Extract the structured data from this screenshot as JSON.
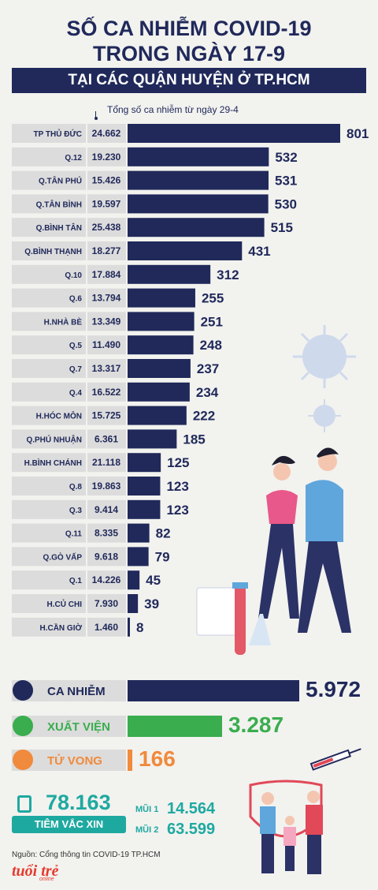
{
  "header": {
    "title_line1": "SỐ CA NHIỄM COVID-19",
    "title_line2": "TRONG NGÀY 17-9",
    "subtitle": "TẠI CÁC QUẬN HUYỆN Ở TP.HCM",
    "cumulative_note": "Tổng số ca nhiễm từ ngày 29-4"
  },
  "chart_data": {
    "type": "bar",
    "categories": [
      "TP THỦ ĐỨC",
      "Q.12",
      "Q.TÂN PHÚ",
      "Q.TÂN BÌNH",
      "Q.BÌNH TÂN",
      "Q.BÌNH THẠNH",
      "Q.10",
      "Q.6",
      "H.NHÀ BÈ",
      "Q.5",
      "Q.7",
      "Q.4",
      "H.HÓC MÔN",
      "Q.PHÚ NHUẬN",
      "H.BÌNH CHÁNH",
      "Q.8",
      "Q.3",
      "Q.11",
      "Q.GÒ VẤP",
      "Q.1",
      "H.CỦ CHI",
      "H.CẦN GIỜ"
    ],
    "cumulative_labels": [
      "24.662",
      "19.230",
      "15.426",
      "19.597",
      "25.438",
      "18.277",
      "17.884",
      "13.794",
      "13.349",
      "11.490",
      "13.317",
      "16.522",
      "15.725",
      "6.361",
      "21.118",
      "19.863",
      "9.414",
      "8.335",
      "9.618",
      "14.226",
      "7.930",
      "1.460"
    ],
    "values": [
      801,
      532,
      531,
      530,
      515,
      431,
      312,
      255,
      251,
      248,
      237,
      234,
      222,
      185,
      125,
      123,
      123,
      82,
      79,
      45,
      39,
      8
    ],
    "orientation": "horizontal",
    "bar_color": "#20295a",
    "xlim": [
      0,
      801
    ]
  },
  "stats": {
    "cases": {
      "label": "CA NHIỄM",
      "value": "5.972",
      "count": 5972,
      "color": "#20295a"
    },
    "recovered": {
      "label": "XUẤT VIỆN",
      "value": "3.287",
      "count": 3287,
      "color": "#3aad4e"
    },
    "deaths": {
      "label": "TỬ VONG",
      "value": "166",
      "count": 166,
      "color": "#f08a3c"
    }
  },
  "vaccine": {
    "total": "78.163",
    "label": "TIÊM VẮC XIN",
    "dose1_label": "MŨI 1",
    "dose1_value": "14.564",
    "dose2_label": "MŨI 2",
    "dose2_value": "63.599",
    "color": "#1ea9a0"
  },
  "footer": {
    "source": "Nguồn: Cổng thông tin COVID-19 TP.HCM",
    "logo": "tuổi trẻ",
    "logo_sub": "online"
  }
}
